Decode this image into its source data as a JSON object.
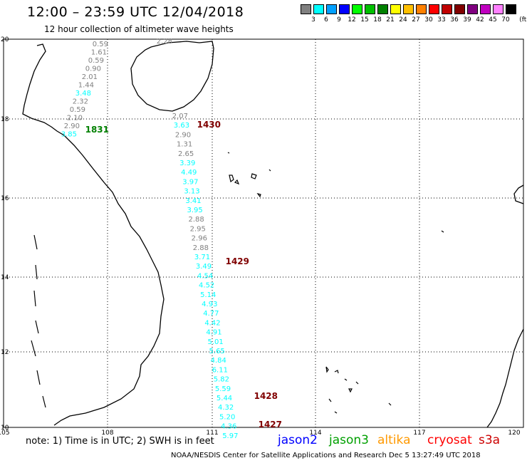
{
  "header": {
    "title": "12:00 – 23:59 UTC 12/04/2018",
    "subtitle": "12 hour collection of altimeter wave heights"
  },
  "legend": {
    "unit": "(ft)",
    "colors": [
      "#808080",
      "#00ffff",
      "#00a0ff",
      "#0000ff",
      "#00ff00",
      "#00c000",
      "#008000",
      "#ffff00",
      "#ffc000",
      "#ff8000",
      "#ff0000",
      "#c00000",
      "#800000",
      "#800080",
      "#c000c0",
      "#ff80ff",
      "#000000"
    ],
    "labels": [
      "3",
      "6",
      "9",
      "12",
      "15",
      "18",
      "21",
      "24",
      "27",
      "30",
      "33",
      "36",
      "39",
      "42",
      "45",
      "70"
    ]
  },
  "axes": {
    "lat_labels": [
      "20",
      "18",
      "16",
      "14",
      "12",
      "10"
    ],
    "lon_labels": [
      "105",
      "108",
      "111",
      "114",
      "117",
      "120"
    ]
  },
  "tracks": [
    {
      "color": "#808080",
      "values": [
        "0.59",
        "1.61",
        "0.59",
        "0.90",
        "2.01",
        "1.44"
      ]
    },
    {
      "color": "#00ffff",
      "values": [
        "3.48"
      ]
    },
    {
      "color": "#808080",
      "values": [
        "2.32",
        "0.59",
        "2.10",
        "2.90"
      ]
    },
    {
      "color": "#00ffff",
      "values": [
        "3.85"
      ]
    },
    {
      "color": "#808080",
      "values": [
        "2.07"
      ]
    },
    {
      "color": "#00ffff",
      "values": [
        "3.63"
      ]
    },
    {
      "color": "#808080",
      "values": [
        "2.90",
        "1.31",
        "2.65"
      ]
    },
    {
      "color": "#00ffff",
      "values": [
        "3.39",
        "4.49",
        "3.97",
        "3.13",
        "3.41",
        "3.95"
      ]
    },
    {
      "color": "#808080",
      "values": [
        "2.88",
        "2.95",
        "2.96",
        "2.88"
      ]
    },
    {
      "color": "#00ffff",
      "values": [
        "3.71",
        "3.49",
        "4.54",
        "4.52",
        "5.14",
        "4.93",
        "4.77",
        "4.42",
        "4.91",
        "5.01",
        "5.65",
        "4.84",
        "6.11",
        "5.82",
        "5.59",
        "5.44",
        "4.32",
        "5.20",
        "4.36",
        "5.97"
      ]
    }
  ],
  "orphan_label": {
    "text": "2.28",
    "color": "#808080"
  },
  "pass_times": [
    {
      "text": "1831",
      "color": "#008000"
    },
    {
      "text": "1430",
      "color": "#800000"
    },
    {
      "text": "1429",
      "color": "#800000"
    },
    {
      "text": "1428",
      "color": "#800000"
    },
    {
      "text": "1427",
      "color": "#800000"
    }
  ],
  "note": "note: 1) Time is in UTC; 2) SWH is in feet",
  "satellites": [
    {
      "name": "jason2",
      "color": "#0000ff"
    },
    {
      "name": "jason3",
      "color": "#00a000"
    },
    {
      "name": "altika",
      "color": "#ff9900"
    },
    {
      "name": "cryosat",
      "color": "#ff0000"
    },
    {
      "name": "s3a",
      "color": "#cc0000"
    }
  ],
  "footer": "NOAA/NESDIS Center for Satellite Applications and Research  Dec  5 13:27:49 UTC 2018"
}
